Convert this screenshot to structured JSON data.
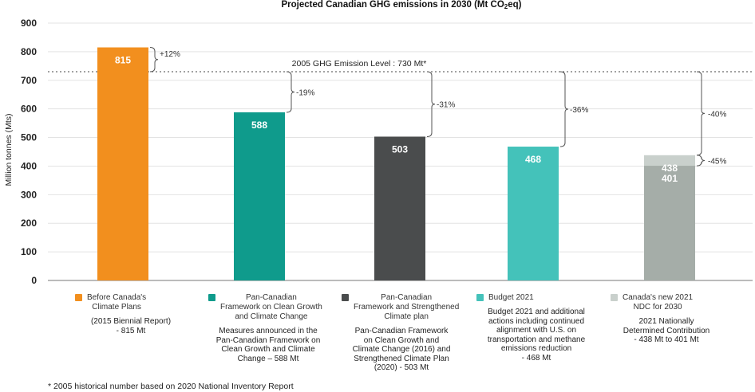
{
  "chart_data": {
    "type": "bar",
    "title_pre": "Projected Canadian GHG emissions in 2030 (Mt CO",
    "title_sub": "2",
    "title_post": "eq)",
    "ylabel": "Million tonnes (Mts)",
    "ylim": [
      0,
      900
    ],
    "yticks": [
      0,
      100,
      200,
      300,
      400,
      500,
      600,
      700,
      800,
      900
    ],
    "grid": true,
    "reference_line": {
      "value": 730,
      "label": "2005 GHG Emission Level : 730 Mt*"
    },
    "bars": [
      {
        "value": 815,
        "label": "815",
        "color": "#f28f1e",
        "change": "+12%"
      },
      {
        "value": 588,
        "label": "588",
        "color": "#0f9b8c",
        "change": "-19%"
      },
      {
        "value": 503,
        "label": "503",
        "color": "#4a4c4d",
        "change": "-31%"
      },
      {
        "value": 468,
        "label": "468",
        "color": "#44c2ba",
        "change": "-36%"
      },
      {
        "value": 438,
        "label": "438",
        "low_value": 401,
        "low_label": "401",
        "color": "#c9d0cc",
        "low_color": "#a5ada8",
        "change": "-40%",
        "change_low": "-45%"
      }
    ],
    "legend": [
      {
        "color": "#f28f1e",
        "label": "Before Canada's\nClimate Plans",
        "desc": "(2015 Biennial Report)\n- 815 Mt"
      },
      {
        "color": "#0f9b8c",
        "label": "Pan-Canadian\nFramework on Clean Growth\nand Climate Change",
        "desc": "Measures announced in the\nPan-Canadian Framework on\nClean Growth and Climate\nChange – 588 Mt"
      },
      {
        "color": "#4a4c4d",
        "label": "Pan-Canadian\nFramework and Strengthened\nClimate plan",
        "desc": "Pan-Canadian Framework\non Clean Growth and\nClimate Change (2016) and\nStrengthened Climate Plan\n(2020) - 503 Mt"
      },
      {
        "color": "#44c2ba",
        "label": "Budget 2021",
        "desc": "Budget 2021 and additional\nactions including continued\nalignment with U.S. on\ntransportation and methane\nemissions reduction\n- 468 Mt"
      },
      {
        "color": "#c9d0cc",
        "label": "Canada's new 2021\nNDC for 2030",
        "desc": "2021 Nationally\nDetermined Contribution\n- 438 Mt to 401 Mt"
      }
    ]
  },
  "footnote": "* 2005 historical number based on 2020 National Inventory Report"
}
